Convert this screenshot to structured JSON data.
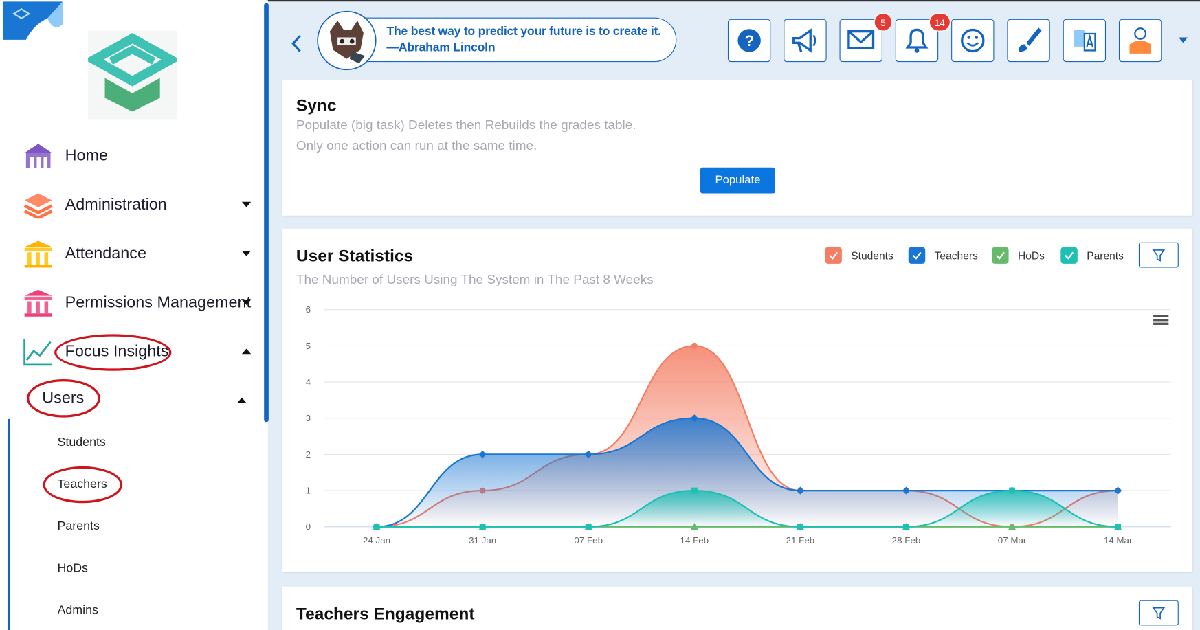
{
  "sidebar": {
    "items": [
      "Home",
      "Administration",
      "Attendance",
      "Permissions Management",
      "Focus Insights"
    ],
    "submenu": "Users",
    "subitems": [
      "Students",
      "Teachers",
      "Parents",
      "HoDs",
      "Admins"
    ]
  },
  "header": {
    "quote": [
      "The best way to predict your future is to create it.",
      "—Abraham Lincoln"
    ],
    "badges": {
      "messages": "5",
      "notifications": "14"
    }
  },
  "sync": {
    "title": "Sync",
    "lines": [
      "Populate (big task) Deletes then Rebuilds the grades table.",
      "Only one action can run at the same time."
    ],
    "button": "Populate"
  },
  "chart_data": {
    "type": "line",
    "title": "User Statistics",
    "subtitle": "The Number of Users Using The System in The Past 8 Weeks",
    "categories": [
      "24 Jan",
      "31 Jan",
      "07 Feb",
      "14 Feb",
      "21 Feb",
      "28 Feb",
      "07 Mar",
      "14 Mar"
    ],
    "series": [
      {
        "name": "Students",
        "color": "#f47e64",
        "marker": "circle",
        "values": [
          0,
          1,
          2,
          5,
          1,
          1,
          0,
          1
        ]
      },
      {
        "name": "Teachers",
        "color": "#1976d2",
        "marker": "diamond",
        "values": [
          0,
          2,
          2,
          3,
          1,
          1,
          1,
          1
        ]
      },
      {
        "name": "HoDs",
        "color": "#66bb6a",
        "marker": "triangle",
        "values": [
          0,
          0,
          0,
          0,
          0,
          0,
          0,
          0
        ]
      },
      {
        "name": "Parents",
        "color": "#1fbfb3",
        "marker": "square",
        "values": [
          0,
          0,
          0,
          1,
          0,
          0,
          1,
          0
        ]
      }
    ],
    "ylim": [
      0,
      6
    ],
    "yticks": [
      0,
      1,
      2,
      3,
      4,
      5,
      6
    ],
    "grid": true,
    "area": true
  },
  "engagement": {
    "title": "Teachers Engagement"
  }
}
